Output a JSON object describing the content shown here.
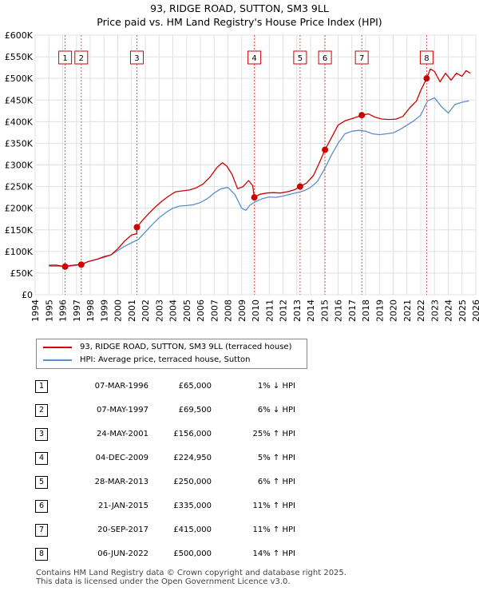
{
  "title_line1": "93, RIDGE ROAD, SUTTON, SM3 9LL",
  "title_line2": "Price paid vs. HM Land Registry's House Price Index (HPI)",
  "colors": {
    "property": "#cc0000",
    "hpi": "#5b8fc7",
    "marker_box": "#cc0000"
  },
  "legend": {
    "property_label": "93, RIDGE ROAD, SUTTON, SM3 9LL (terraced house)",
    "hpi_label": "HPI: Average price, terraced house, Sutton"
  },
  "transactions": [
    {
      "num": "1",
      "date": "07-MAR-1996",
      "price": "£65,000",
      "hpi": "1% ↓ HPI",
      "year": 1996.18,
      "value": 65000
    },
    {
      "num": "2",
      "date": "07-MAY-1997",
      "price": "£69,500",
      "hpi": "6% ↓ HPI",
      "year": 1997.35,
      "value": 69500
    },
    {
      "num": "3",
      "date": "24-MAY-2001",
      "price": "£156,000",
      "hpi": "25% ↑ HPI",
      "year": 2001.39,
      "value": 156000
    },
    {
      "num": "4",
      "date": "04-DEC-2009",
      "price": "£224,950",
      "hpi": "5% ↑ HPI",
      "year": 2009.92,
      "value": 224950
    },
    {
      "num": "5",
      "date": "28-MAR-2013",
      "price": "£250,000",
      "hpi": "6% ↑ HPI",
      "year": 2013.24,
      "value": 250000
    },
    {
      "num": "6",
      "date": "21-JAN-2015",
      "price": "£335,000",
      "hpi": "11% ↑ HPI",
      "year": 2015.05,
      "value": 335000
    },
    {
      "num": "7",
      "date": "20-SEP-2017",
      "price": "£415,000",
      "hpi": "11% ↑ HPI",
      "year": 2017.72,
      "value": 415000
    },
    {
      "num": "8",
      "date": "06-JUN-2022",
      "price": "£500,000",
      "hpi": "14% ↑ HPI",
      "year": 2022.43,
      "value": 500000
    }
  ],
  "footer_line1": "Contains HM Land Registry data © Crown copyright and database right 2025.",
  "footer_line2": "This data is licensed under the Open Government Licence v3.0.",
  "chart_data": {
    "type": "line",
    "title": "93, RIDGE ROAD, SUTTON, SM3 9LL — Price paid vs. HM Land Registry's House Price Index (HPI)",
    "xlabel": "",
    "ylabel": "",
    "xlim": [
      1994,
      2026
    ],
    "ylim": [
      0,
      600000
    ],
    "x_ticks": [
      "1994",
      "1995",
      "1996",
      "1997",
      "1998",
      "1999",
      "2000",
      "2001",
      "2002",
      "2003",
      "2004",
      "2005",
      "2006",
      "2007",
      "2008",
      "2009",
      "2010",
      "2011",
      "2012",
      "2013",
      "2014",
      "2015",
      "2016",
      "2017",
      "2018",
      "2019",
      "2020",
      "2021",
      "2022",
      "2023",
      "2024",
      "2025",
      "2026"
    ],
    "y_ticks": [
      {
        "v": 0,
        "label": "£0"
      },
      {
        "v": 50000,
        "label": "£50K"
      },
      {
        "v": 100000,
        "label": "£100K"
      },
      {
        "v": 150000,
        "label": "£150K"
      },
      {
        "v": 200000,
        "label": "£200K"
      },
      {
        "v": 250000,
        "label": "£250K"
      },
      {
        "v": 300000,
        "label": "£300K"
      },
      {
        "v": 350000,
        "label": "£350K"
      },
      {
        "v": 400000,
        "label": "£400K"
      },
      {
        "v": 450000,
        "label": "£450K"
      },
      {
        "v": 500000,
        "label": "£500K"
      },
      {
        "v": 550000,
        "label": "£550K"
      },
      {
        "v": 600000,
        "label": "£600K"
      }
    ],
    "grid": true,
    "series": [
      {
        "name": "93, RIDGE ROAD, SUTTON, SM3 9LL (terraced house)",
        "x": [
          1995.0,
          1995.5,
          1996.0,
          1996.18,
          1996.6,
          1997.0,
          1997.35,
          1997.8,
          1998.5,
          1999.0,
          1999.5,
          2000.0,
          2000.5,
          2001.0,
          2001.38,
          2001.39,
          2001.8,
          2002.2,
          2002.7,
          2003.2,
          2003.7,
          2004.2,
          2004.7,
          2005.2,
          2005.7,
          2006.2,
          2006.7,
          2007.2,
          2007.6,
          2007.9,
          2008.3,
          2008.7,
          2009.1,
          2009.5,
          2009.8,
          2009.92,
          2010.3,
          2010.8,
          2011.3,
          2011.8,
          2012.3,
          2012.8,
          2013.24,
          2013.7,
          2014.2,
          2014.6,
          2015.05,
          2015.5,
          2016.0,
          2016.5,
          2016.9,
          2017.3,
          2017.72,
          2018.2,
          2018.7,
          2019.2,
          2019.7,
          2020.2,
          2020.7,
          2021.2,
          2021.7,
          2022.0,
          2022.43,
          2022.7,
          2023.0,
          2023.4,
          2023.8,
          2024.2,
          2024.6,
          2025.0,
          2025.3,
          2025.6
        ],
        "values": [
          68000,
          68500,
          66000,
          65000,
          67500,
          69000,
          69500,
          76000,
          82000,
          88000,
          92000,
          106000,
          124000,
          138000,
          141000,
          156000,
          172000,
          186000,
          202000,
          216000,
          228000,
          238000,
          240000,
          242000,
          247000,
          256000,
          272000,
          294000,
          305000,
          298000,
          278000,
          245000,
          250000,
          264000,
          252000,
          224950,
          232000,
          235000,
          236000,
          235000,
          238000,
          242000,
          250000,
          258000,
          275000,
          302000,
          335000,
          362000,
          392000,
          402000,
          406000,
          410000,
          415000,
          418000,
          410000,
          406000,
          405000,
          406000,
          412000,
          432000,
          448000,
          472000,
          500000,
          522000,
          516000,
          492000,
          512000,
          496000,
          512000,
          505000,
          518000,
          512000
        ]
      },
      {
        "name": "HPI: Average price, terraced house, Sutton",
        "x": [
          1995.0,
          1995.5,
          1996.0,
          1996.5,
          1997.0,
          1997.5,
          1998.0,
          1998.5,
          1999.0,
          1999.5,
          2000.0,
          2000.5,
          2001.0,
          2001.5,
          2002.0,
          2002.5,
          2003.0,
          2003.5,
          2004.0,
          2004.5,
          2005.0,
          2005.5,
          2006.0,
          2006.5,
          2007.0,
          2007.5,
          2008.0,
          2008.5,
          2009.0,
          2009.3,
          2009.6,
          2010.0,
          2010.5,
          2011.0,
          2011.5,
          2012.0,
          2012.5,
          2013.0,
          2013.5,
          2014.0,
          2014.5,
          2015.0,
          2015.5,
          2016.0,
          2016.5,
          2017.0,
          2017.5,
          2018.0,
          2018.5,
          2019.0,
          2019.5,
          2020.0,
          2020.5,
          2021.0,
          2021.5,
          2022.0,
          2022.5,
          2023.0,
          2023.5,
          2024.0,
          2024.5,
          2025.0,
          2025.5
        ],
        "values": [
          66000,
          66000,
          65500,
          66000,
          68000,
          72000,
          78000,
          82000,
          86000,
          92000,
          102000,
          112000,
          120000,
          128000,
          145000,
          162000,
          178000,
          190000,
          200000,
          205000,
          206000,
          208000,
          213000,
          222000,
          235000,
          245000,
          248000,
          232000,
          200000,
          195000,
          207000,
          215000,
          222000,
          226000,
          225000,
          228000,
          232000,
          236000,
          240000,
          248000,
          262000,
          290000,
          322000,
          350000,
          372000,
          378000,
          380000,
          378000,
          372000,
          370000,
          372000,
          374000,
          382000,
          392000,
          402000,
          415000,
          448000,
          455000,
          435000,
          420000,
          440000,
          445000,
          448000
        ]
      }
    ],
    "markers": [
      {
        "num": "1",
        "x": 1996.18,
        "y": 65000
      },
      {
        "num": "2",
        "x": 1997.35,
        "y": 69500
      },
      {
        "num": "3",
        "x": 2001.39,
        "y": 156000
      },
      {
        "num": "4",
        "x": 2009.92,
        "y": 224950
      },
      {
        "num": "5",
        "x": 2013.24,
        "y": 250000
      },
      {
        "num": "6",
        "x": 2015.05,
        "y": 335000
      },
      {
        "num": "7",
        "x": 2017.72,
        "y": 415000
      },
      {
        "num": "8",
        "x": 2022.43,
        "y": 500000
      }
    ],
    "legend_position": "below-plot-left"
  }
}
